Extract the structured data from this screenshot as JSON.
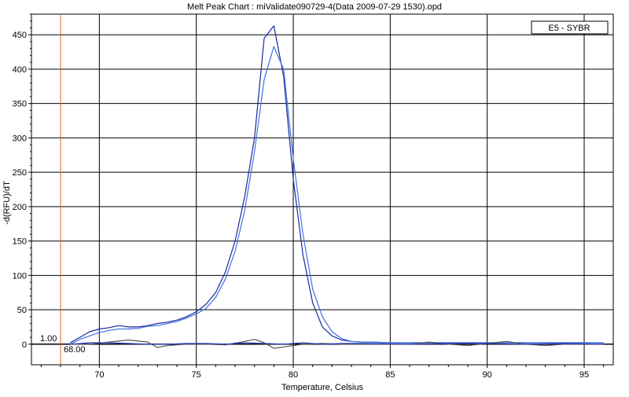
{
  "chart_data": {
    "type": "line",
    "title": "Melt Peak Chart : miValidate090729-4(Data 2009-07-29 1530).opd",
    "xlabel": "Temperature, Celsius",
    "ylabel": "-d(RFU)/dT",
    "xlim": [
      66.5,
      96.5
    ],
    "ylim": [
      -30,
      480
    ],
    "xticks": [
      70,
      75,
      80,
      85,
      90,
      95
    ],
    "yticks": [
      0,
      50,
      100,
      150,
      200,
      250,
      300,
      350,
      400,
      450
    ],
    "grid": true,
    "legend": {
      "placement": "top-right",
      "entries": [
        "E5 - SYBR"
      ]
    },
    "cursor": {
      "x": 68,
      "label_y": "1.00",
      "label_x": "68.00"
    },
    "series": [
      {
        "color": "#1a2a9c",
        "x": [
          68.5,
          69,
          69.5,
          70,
          70.5,
          71,
          71.5,
          72,
          72.5,
          73,
          73.5,
          74,
          74.5,
          75,
          75.5,
          76,
          76.5,
          77,
          77.5,
          78,
          78.5,
          79,
          79.5,
          80,
          80.5,
          81,
          81.5,
          82,
          82.5,
          83,
          83.5,
          84,
          85,
          86,
          87,
          88,
          89,
          90,
          91,
          92,
          93,
          94,
          95,
          96
        ],
        "values": [
          2,
          10,
          18,
          22,
          24,
          27,
          25,
          25,
          27,
          30,
          32,
          35,
          40,
          47,
          58,
          75,
          105,
          150,
          215,
          300,
          445,
          463,
          390,
          240,
          130,
          60,
          25,
          12,
          6,
          4,
          3,
          3,
          2,
          2,
          2,
          2,
          2,
          2,
          2,
          2,
          2,
          2,
          2,
          2
        ]
      },
      {
        "color": "#3d73e0",
        "x": [
          68.5,
          69,
          69.5,
          70,
          70.5,
          71,
          71.5,
          72,
          72.5,
          73,
          73.5,
          74,
          74.5,
          75,
          75.5,
          76,
          76.5,
          77,
          77.5,
          78,
          78.5,
          79,
          79.5,
          80,
          80.5,
          81,
          81.5,
          82,
          82.5,
          83,
          83.5,
          84,
          85,
          86,
          87,
          88,
          89,
          90,
          91,
          92,
          93,
          94,
          95,
          96
        ],
        "values": [
          0,
          7,
          12,
          17,
          20,
          22,
          22,
          23,
          26,
          27,
          30,
          33,
          38,
          44,
          52,
          68,
          95,
          135,
          195,
          280,
          385,
          433,
          400,
          270,
          160,
          80,
          40,
          18,
          8,
          4,
          3,
          3,
          2,
          2,
          2,
          2,
          2,
          2,
          2,
          2,
          2,
          2,
          2,
          2
        ]
      },
      {
        "color": "#555555",
        "x": [
          68.5,
          69.5,
          70.5,
          71.5,
          72.5,
          73,
          73.5,
          74.5,
          75.5,
          76.5,
          77.5,
          78,
          78.5,
          79,
          79.5,
          80.5,
          81.5,
          82.5,
          84,
          86,
          87,
          88,
          89,
          90,
          91,
          92,
          93,
          94,
          95,
          96
        ],
        "values": [
          0,
          0,
          3,
          6,
          3,
          -5,
          -2,
          0,
          0,
          -1,
          4,
          7,
          2,
          -6,
          -4,
          0,
          1,
          0,
          0,
          0,
          3,
          0,
          -2,
          1,
          4,
          0,
          -2,
          0,
          0,
          0
        ]
      },
      {
        "color": "#2a3fbf",
        "x": [
          68.5,
          69.5,
          70.5,
          71.5,
          72.5,
          73.5,
          74.5,
          75.5,
          76.5,
          77.5,
          78.5,
          79.5,
          80.5,
          81.5,
          82.5,
          84,
          86,
          88,
          90,
          92,
          94,
          96
        ],
        "values": [
          0,
          2,
          2,
          1,
          0,
          0,
          1,
          1,
          0,
          2,
          1,
          0,
          2,
          0,
          1,
          1,
          0,
          1,
          1,
          0,
          1,
          0
        ]
      }
    ]
  }
}
